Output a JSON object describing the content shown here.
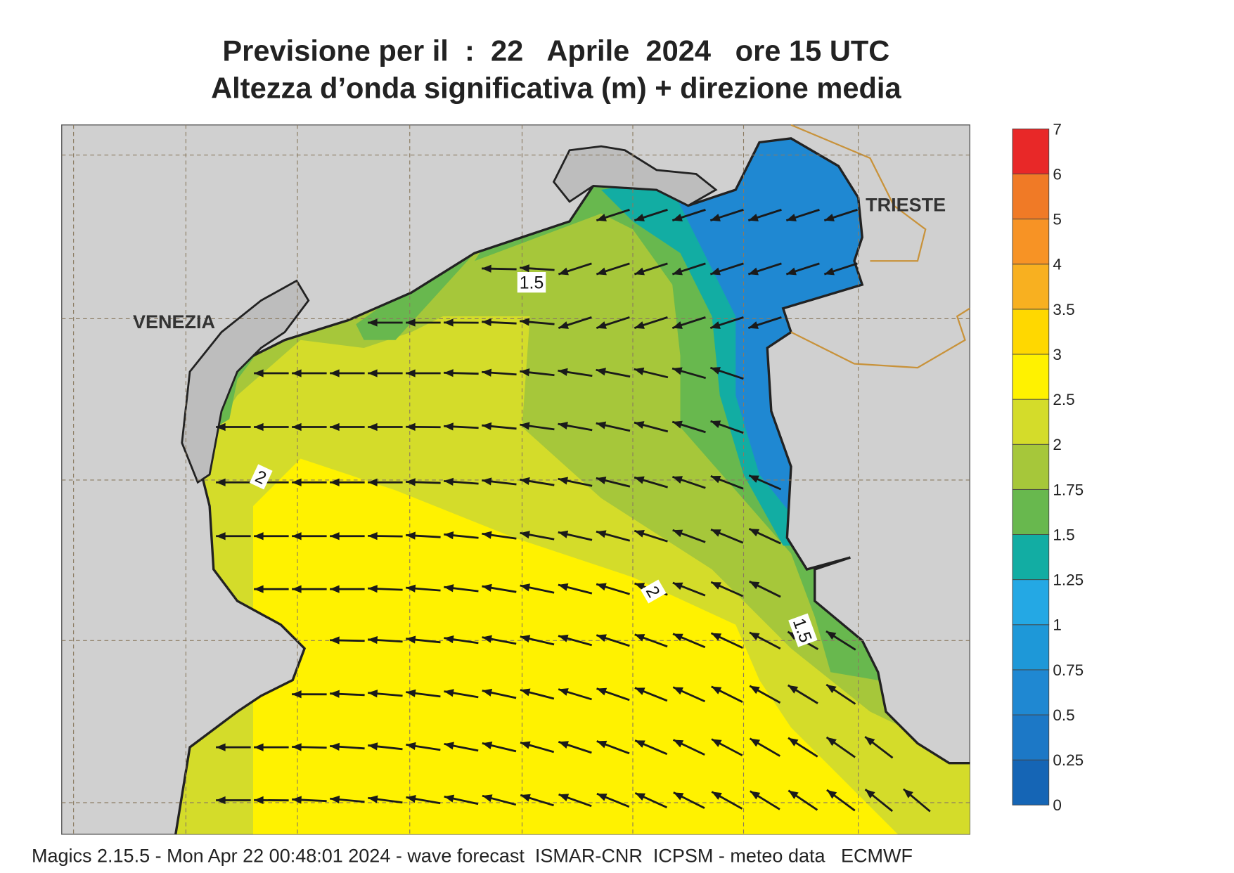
{
  "header": {
    "title": "Previsione per il  :  22   Aprile  2024   ore 15 UTC",
    "subtitle": "Altezza d’onda significativa (m) + direzione media"
  },
  "map": {
    "places": [
      "VENEZIA",
      "TRIESTE"
    ],
    "contour_labels": [
      1.5,
      2,
      2,
      1.5
    ]
  },
  "colorbar": {
    "levels": [
      0,
      0.25,
      0.5,
      0.75,
      1,
      1.25,
      1.5,
      1.75,
      2,
      2.5,
      3,
      3.5,
      4,
      5,
      6,
      7
    ],
    "colors": [
      "#1565b5",
      "#1c78c6",
      "#1f88d2",
      "#1e98d8",
      "#24a8e4",
      "#12ada3",
      "#68b84e",
      "#a6c73a",
      "#d4dc2a",
      "#fff200",
      "#ffd800",
      "#f8b020",
      "#f79325",
      "#f07a26",
      "#e82828",
      "#e8186e"
    ]
  },
  "footer": "Magics 2.15.5 - Mon Apr 22 00:48:01 2024 - wave forecast  ISMAR-CNR  ICPSM - meteo data   ECMWF"
}
